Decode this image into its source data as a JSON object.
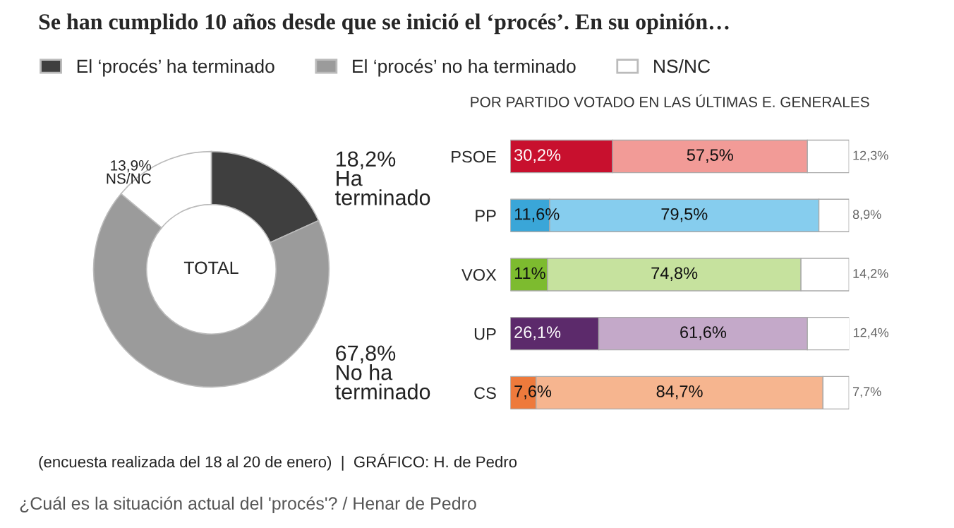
{
  "chart_data": [
    {
      "type": "donut",
      "title": "Se han cumplido 10 años desde que se inició el ‘procés’. En su opinión…",
      "categories": [
        "El ‘procés’ ha terminado",
        "El ‘procés’ no ha terminado",
        "NS/NC"
      ],
      "values": [
        18.2,
        67.8,
        13.9
      ],
      "colors": [
        "#3f3f3f",
        "#9b9b9b",
        "#ffffff"
      ],
      "value_labels": [
        "18,2%\nHa\nterminado",
        "67,8%\nNo ha\nterminado",
        "13,9%\nNS/NC"
      ],
      "legend": "top",
      "annotations": [
        "TOTAL",
        "(encuesta realizada del 18 al 20 de enero)  |  GRÁFICO: H. de Pedro",
        "¿Cuál es la situación actual del 'procés'? / Henar de Pedro"
      ]
    },
    {
      "type": "bar",
      "title": "POR PARTIDO VOTADO EN LAS ÚLTIMAS E. GENERALES",
      "orientation": "horizontal",
      "stacked": true,
      "categories": [
        "PSOE",
        "PP",
        "VOX",
        "UP",
        "CS"
      ],
      "xlim": [
        0,
        100
      ],
      "tick_labels": "y",
      "series": [
        {
          "colors": [
            "#c8102e",
            "#3aa6d8",
            "#7dbb2f",
            "#5c2a6b",
            "#ee7a3c"
          ],
          "values": [
            30.2,
            11.6,
            11,
            26.1,
            7.6
          ],
          "value_labels": [
            "30,2%",
            "11,6%",
            "11%",
            "26,1%",
            "7,6%"
          ]
        },
        {
          "colors": [
            "#f29b97",
            "#86cdee",
            "#c6e29e",
            "#c4a9c9",
            "#f6b58f"
          ],
          "values": [
            57.5,
            79.5,
            74.8,
            61.6,
            84.7
          ],
          "value_labels": [
            "57,5%",
            "79,5%",
            "74,8%",
            "61,6%",
            "84,7%"
          ]
        },
        {
          "colors": [
            "#ffffff",
            "#ffffff",
            "#ffffff",
            "#ffffff",
            "#ffffff"
          ],
          "values": [
            12.3,
            8.9,
            14.2,
            12.4,
            7.7
          ],
          "value_labels": [
            "12,3%",
            "8,9%",
            "14,2%",
            "12,4%",
            "7,7%"
          ]
        }
      ]
    }
  ]
}
